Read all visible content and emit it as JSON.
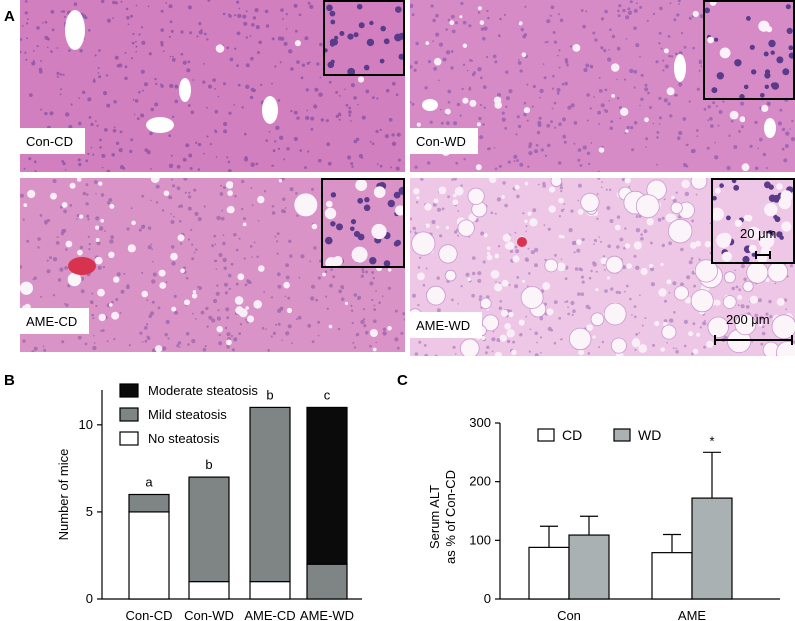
{
  "panel_letters": {
    "a": "A",
    "b": "B",
    "c": "C"
  },
  "micrographs": [
    {
      "label": "Con-CD",
      "base": "#d27fbf",
      "dot": "#8e56a8",
      "vacuoles": 3,
      "big_vacuoles": 0
    },
    {
      "label": "Con-WD",
      "base": "#d68bc6",
      "dot": "#9a62b2",
      "vacuoles": 40,
      "big_vacuoles": 0
    },
    {
      "label": "AME-CD",
      "base": "#da93c7",
      "dot": "#a06aae",
      "vacuoles": 70,
      "big_vacuoles": 4
    },
    {
      "label": "AME-WD",
      "base": "#eec6e6",
      "dot": "#b68ac4",
      "vacuoles": 140,
      "big_vacuoles": 55
    }
  ],
  "scale_bars": {
    "small": "20 μm",
    "large": "200 μm"
  },
  "chart_data": [
    {
      "type": "bar",
      "stacked": true,
      "categories": [
        "Con-CD",
        "Con-WD",
        "AME-CD",
        "AME-WD"
      ],
      "series": [
        {
          "name": "No steatosis",
          "values": [
            5,
            1,
            1,
            0
          ],
          "color": "#ffffff"
        },
        {
          "name": "Mild steatosis",
          "values": [
            1,
            6,
            10,
            2
          ],
          "color": "#7f8584"
        },
        {
          "name": "Moderate steatosis",
          "values": [
            0,
            0,
            0,
            9
          ],
          "color": "#0b0b0b"
        }
      ],
      "legend_order": [
        "Moderate steatosis",
        "Mild steatosis",
        "No steatosis"
      ],
      "significance_letters": [
        "a",
        "b",
        "b",
        "c"
      ],
      "ylabel": "Number of mice",
      "ylim": [
        0,
        12
      ],
      "yticks": [
        0,
        5,
        10
      ],
      "legend_position": "top-left"
    },
    {
      "type": "bar",
      "grouped": true,
      "categories": [
        "Con",
        "AME"
      ],
      "series": [
        {
          "name": "CD",
          "values": [
            88,
            79
          ],
          "errors": [
            36,
            31
          ],
          "color": "#ffffff"
        },
        {
          "name": "WD",
          "values": [
            109,
            172
          ],
          "errors": [
            32,
            78
          ],
          "color": "#a9b1b2"
        }
      ],
      "annotation": "*",
      "ylabel": "Serum ALT\nas % of Con-CD",
      "ylim": [
        0,
        300
      ],
      "yticks": [
        0,
        100,
        200,
        300
      ],
      "legend_position": "top"
    }
  ]
}
